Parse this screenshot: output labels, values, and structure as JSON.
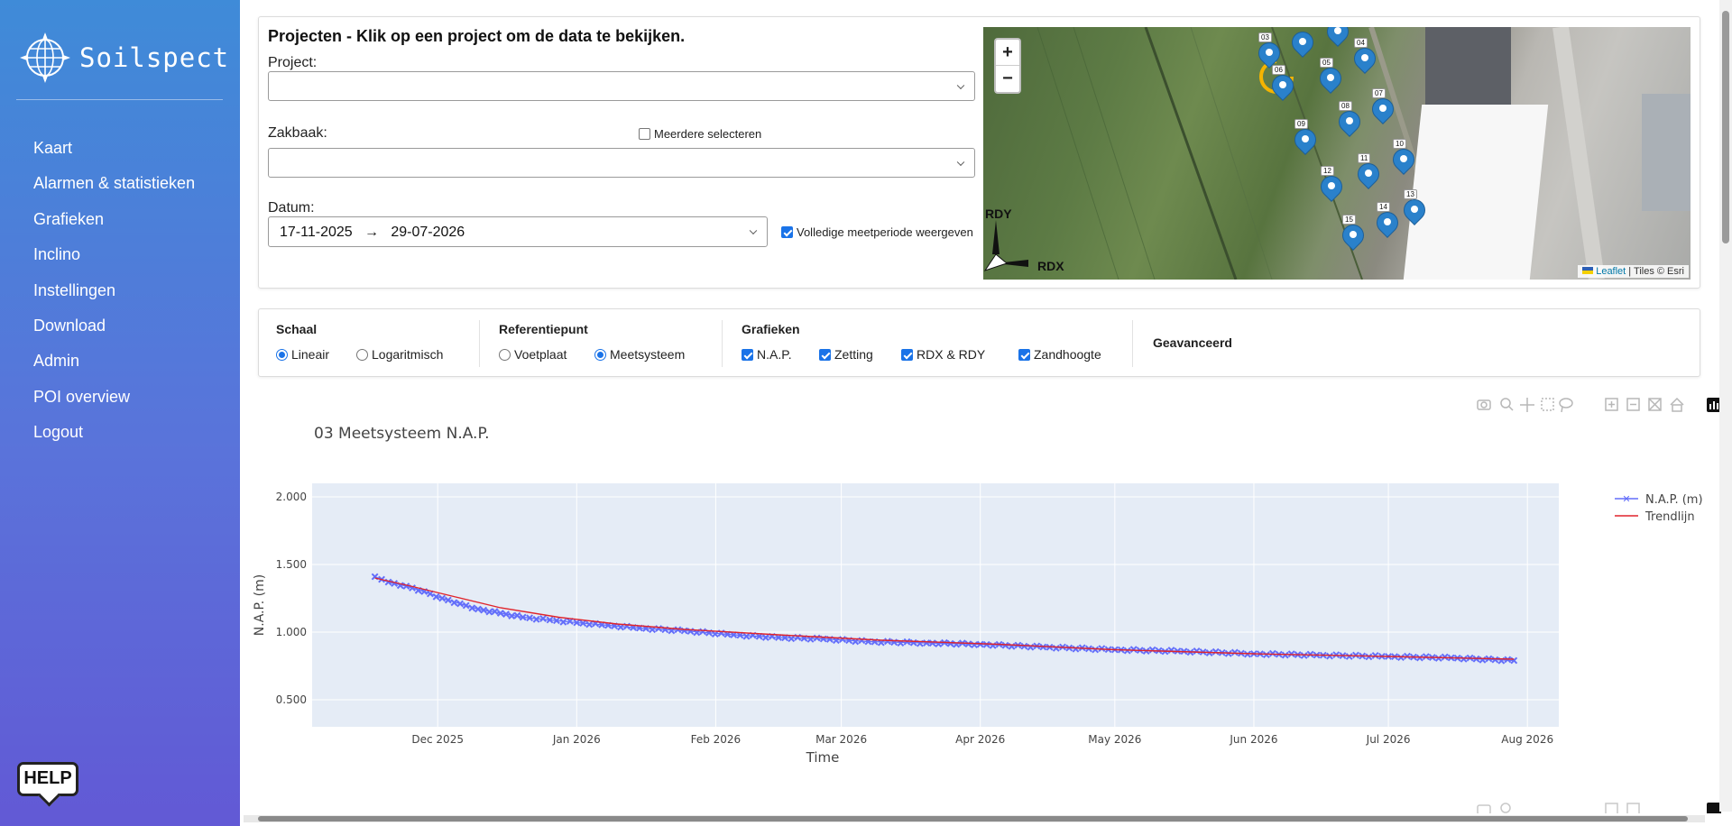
{
  "brand": {
    "name": "Soilspect"
  },
  "sidebar": {
    "items": [
      {
        "label": "Kaart"
      },
      {
        "label": "Alarmen & statistieken"
      },
      {
        "label": "Grafieken"
      },
      {
        "label": "Inclino"
      },
      {
        "label": "Instellingen"
      },
      {
        "label": "Download"
      },
      {
        "label": "Admin"
      },
      {
        "label": "POI overview"
      },
      {
        "label": "Logout"
      }
    ],
    "help_label": "HELP"
  },
  "projects": {
    "title": "Projecten - Klik op een project om de data te bekijken.",
    "project_label": "Project:",
    "project_value": "",
    "zakbaak_label": "Zakbaak:",
    "multi_select_label": "Meerdere selecteren",
    "multi_select_checked": false,
    "zakbaak_value": "",
    "datum_label": "Datum:",
    "date_start": "17-11-2025",
    "date_arrow": "→",
    "date_end": "29-07-2026",
    "full_period_label": "Volledige meetperiode weergeven",
    "full_period_checked": true
  },
  "map": {
    "zoom_in": "+",
    "zoom_out": "−",
    "axis_y": "RDY",
    "axis_x": "RDX",
    "attribution_link": "Leaflet",
    "attribution_text": "| Tiles © Esri",
    "markers": [
      "03",
      "04",
      "05",
      "06",
      "07",
      "08",
      "09",
      "10",
      "11",
      "12",
      "13",
      "14",
      "15"
    ]
  },
  "options": {
    "schaal": {
      "title": "Schaal",
      "linear": "Lineair",
      "log": "Logaritmisch",
      "selected": "Lineair"
    },
    "referentie": {
      "title": "Referentiepunt",
      "voetplaat": "Voetplaat",
      "meetsysteem": "Meetsysteem",
      "selected": "Meetsysteem"
    },
    "grafieken": {
      "title": "Grafieken",
      "nap": "N.A.P.",
      "zetting": "Zetting",
      "rdx_rdy": "RDX & RDY",
      "zandhoogte": "Zandhoogte"
    },
    "advanced": "Geavanceerd"
  },
  "chart_data": {
    "type": "line",
    "title": "03 Meetsysteem N.A.P.",
    "xlabel": "Time",
    "ylabel": "N.A.P. (m)",
    "ylim": [
      0.3,
      2.1
    ],
    "yticks": [
      "0.500",
      "1.000",
      "1.500",
      "2.000"
    ],
    "xticks": [
      "Dec 2025",
      "Jan 2026",
      "Feb 2026",
      "Mar 2026",
      "Apr 2026",
      "May 2026",
      "Jun 2026",
      "Jul 2026",
      "Aug 2026"
    ],
    "xrange": [
      "2025-11-03",
      "2026-08-08"
    ],
    "legend_position": "right",
    "series": [
      {
        "name": "N.A.P. (m)",
        "color": "#636efa",
        "marker": "x",
        "x": [
          "2025-11-17",
          "2025-11-20",
          "2025-11-24",
          "2025-11-28",
          "2025-12-02",
          "2025-12-06",
          "2025-12-10",
          "2025-12-15",
          "2025-12-20",
          "2025-12-26",
          "2026-01-01",
          "2026-01-08",
          "2026-01-15",
          "2026-01-25",
          "2026-02-05",
          "2026-02-15",
          "2026-02-25",
          "2026-03-07",
          "2026-03-20",
          "2026-04-01",
          "2026-04-15",
          "2026-05-01",
          "2026-05-15",
          "2026-06-01",
          "2026-06-15",
          "2026-07-01",
          "2026-07-15",
          "2026-07-29"
        ],
        "y": [
          1.41,
          1.37,
          1.34,
          1.3,
          1.25,
          1.21,
          1.17,
          1.14,
          1.11,
          1.09,
          1.07,
          1.05,
          1.03,
          1.01,
          0.98,
          0.96,
          0.95,
          0.93,
          0.92,
          0.91,
          0.89,
          0.87,
          0.86,
          0.84,
          0.83,
          0.82,
          0.81,
          0.79
        ]
      },
      {
        "name": "Trendlijn",
        "color": "#e0242b",
        "x": [
          "2025-11-17",
          "2025-11-25",
          "2025-12-05",
          "2025-12-15",
          "2025-12-28",
          "2026-01-10",
          "2026-01-25",
          "2026-02-15",
          "2026-03-10",
          "2026-04-05",
          "2026-05-01",
          "2026-06-01",
          "2026-07-01",
          "2026-07-29"
        ],
        "y": [
          1.4,
          1.34,
          1.26,
          1.18,
          1.11,
          1.06,
          1.02,
          0.98,
          0.94,
          0.91,
          0.87,
          0.84,
          0.82,
          0.8
        ]
      }
    ]
  }
}
